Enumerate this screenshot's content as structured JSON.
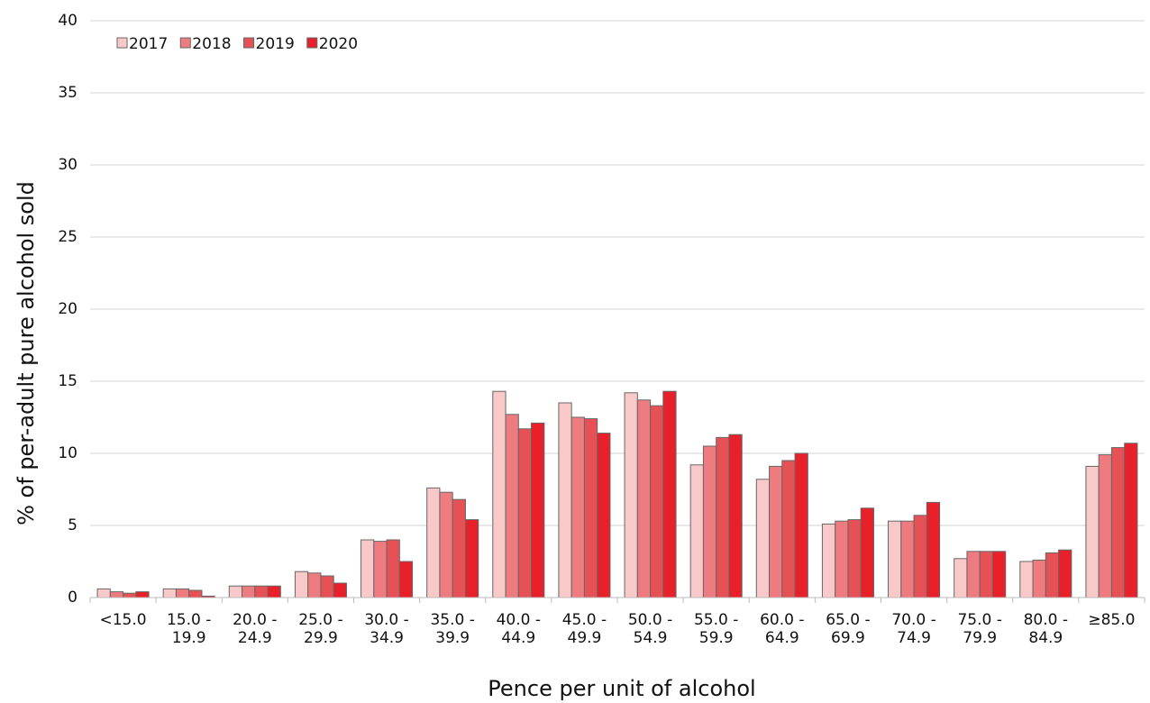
{
  "chart_data": {
    "type": "bar",
    "x_label": "Pence per unit of alcohol",
    "y_label": "% of per-adult pure alcohol sold",
    "categories": [
      "<15.0",
      "15.0 -\n19.9",
      "20.0 -\n24.9",
      "25.0 -\n29.9",
      "30.0 -\n34.9",
      "35.0 -\n39.9",
      "40.0 -\n44.9",
      "45.0 -\n49.9",
      "50.0 -\n54.9",
      "55.0 -\n59.9",
      "60.0 -\n64.9",
      "65.0 -\n69.9",
      "70.0 -\n74.9",
      "75.0 -\n79.9",
      "80.0 -\n84.9",
      "≥85.0"
    ],
    "series": [
      {
        "name": "2017",
        "color": "#f9c9c9",
        "values": [
          0.6,
          0.6,
          0.8,
          1.8,
          4.0,
          7.6,
          14.3,
          13.5,
          14.2,
          9.2,
          8.2,
          5.1,
          5.3,
          2.7,
          2.5,
          9.1
        ]
      },
      {
        "name": "2018",
        "color": "#ee7b7f",
        "values": [
          0.4,
          0.6,
          0.8,
          1.7,
          3.9,
          7.3,
          12.7,
          12.5,
          13.7,
          10.5,
          9.1,
          5.3,
          5.3,
          3.2,
          2.6,
          9.9
        ]
      },
      {
        "name": "2019",
        "color": "#e55155",
        "values": [
          0.3,
          0.5,
          0.8,
          1.5,
          4.0,
          6.8,
          11.7,
          12.4,
          13.3,
          11.1,
          9.5,
          5.4,
          5.7,
          3.2,
          3.1,
          10.4
        ]
      },
      {
        "name": "2020",
        "color": "#e8202a",
        "values": [
          0.4,
          0.1,
          0.8,
          1.0,
          2.5,
          5.4,
          12.1,
          11.4,
          14.3,
          11.3,
          10.0,
          6.2,
          6.6,
          3.2,
          3.3,
          10.7
        ]
      }
    ],
    "ylim": [
      0,
      40
    ],
    "yticks": [
      0,
      5,
      10,
      15,
      20,
      25,
      30,
      35,
      40
    ],
    "grid": true,
    "legend": "top-left"
  }
}
